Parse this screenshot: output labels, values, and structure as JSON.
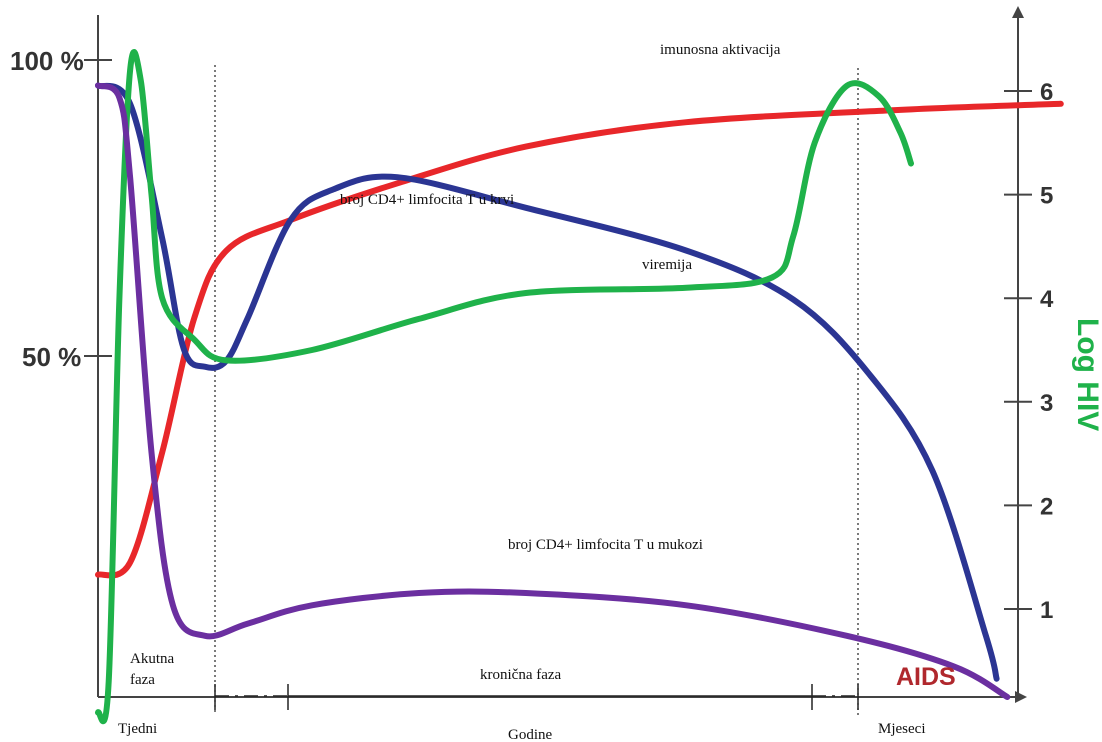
{
  "chart_data": {
    "type": "line",
    "left_axis_labels": [
      "100 %",
      "50 %"
    ],
    "right_axis_title": "Log HIV",
    "right_axis_ticks": [
      "1",
      "2",
      "3",
      "4",
      "5",
      "6"
    ],
    "ylim_left": [
      0,
      100
    ],
    "ylim_right": [
      0,
      6
    ],
    "series": [
      {
        "name": "imunosna aktivacija",
        "color": "#e8272a",
        "axis": "left",
        "points": [
          [
            0,
            20
          ],
          [
            3,
            22
          ],
          [
            6,
            40
          ],
          [
            9,
            62
          ],
          [
            12,
            73
          ],
          [
            18,
            78
          ],
          [
            28,
            84
          ],
          [
            40,
            90
          ],
          [
            55,
            94
          ],
          [
            75,
            96
          ],
          [
            90,
            97
          ]
        ]
      },
      {
        "name": "broj CD4+ limfocita T u krvi",
        "color": "#2b3593",
        "axis": "left",
        "points": [
          [
            0,
            100
          ],
          [
            3,
            97
          ],
          [
            6,
            75
          ],
          [
            8,
            57
          ],
          [
            10,
            54
          ],
          [
            12,
            55
          ],
          [
            14,
            62
          ],
          [
            18,
            78
          ],
          [
            22,
            83
          ],
          [
            28,
            85
          ],
          [
            40,
            80
          ],
          [
            55,
            73
          ],
          [
            65,
            65
          ],
          [
            72,
            53
          ],
          [
            78,
            37
          ],
          [
            83,
            10
          ],
          [
            84,
            3
          ]
        ]
      },
      {
        "name": "viremija",
        "color": "#1fb24a",
        "axis": "right",
        "points": [
          [
            0,
            0
          ],
          [
            1,
            0.3
          ],
          [
            2,
            4
          ],
          [
            3,
            6.2
          ],
          [
            4,
            6.1
          ],
          [
            5,
            5
          ],
          [
            6,
            4
          ],
          [
            9,
            3.6
          ],
          [
            12,
            3.4
          ],
          [
            20,
            3.5
          ],
          [
            30,
            3.8
          ],
          [
            40,
            4.05
          ],
          [
            55,
            4.1
          ],
          [
            63,
            4.2
          ],
          [
            65,
            4.6
          ],
          [
            67,
            5.5
          ],
          [
            70,
            6.05
          ],
          [
            73,
            5.95
          ],
          [
            75,
            5.6
          ],
          [
            76,
            5.3
          ]
        ]
      },
      {
        "name": "broj CD4+ limfocita T u mukozi",
        "color": "#6b2fa0",
        "axis": "left",
        "points": [
          [
            0,
            100
          ],
          [
            2,
            98
          ],
          [
            3,
            85
          ],
          [
            5,
            40
          ],
          [
            7,
            15
          ],
          [
            10,
            10
          ],
          [
            14,
            12
          ],
          [
            20,
            15
          ],
          [
            30,
            17
          ],
          [
            40,
            17
          ],
          [
            55,
            15
          ],
          [
            70,
            10
          ],
          [
            80,
            5
          ],
          [
            85,
            0
          ]
        ]
      }
    ],
    "annotations": {
      "imunosna_aktivacija": "imunosna aktivacija",
      "cd4_krv": "broj CD4+ limfocita T u krvi",
      "viremija": "viremija",
      "cd4_mukoza": "broj CD4+ limfocita T u mukozi",
      "akutna": "Akutna faza",
      "kronicna": "kronična faza",
      "aids": "AIDS"
    },
    "x_labels": [
      "Tjedni",
      "Godine",
      "Mjeseci"
    ],
    "aids_color": "#b0282d"
  }
}
